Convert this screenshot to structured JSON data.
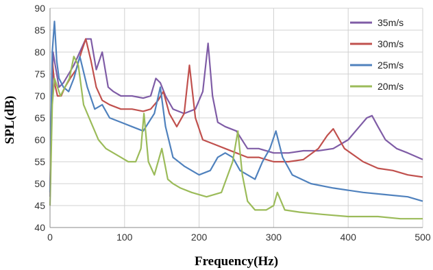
{
  "chart_data": {
    "type": "line",
    "title": "",
    "xlabel": "Frequency(Hz)",
    "ylabel": "SPL(dB)",
    "xlim": [
      0,
      500
    ],
    "ylim": [
      40,
      90
    ],
    "xticks": [
      0,
      100,
      200,
      300,
      400,
      500
    ],
    "yticks": [
      40,
      45,
      50,
      55,
      60,
      65,
      70,
      75,
      80,
      85,
      90
    ],
    "grid": true,
    "legend_position": "top-right",
    "series": [
      {
        "name": "35m/s",
        "color": "#7f5ca6",
        "x": [
          0,
          4,
          8,
          12,
          18,
          25,
          32,
          40,
          48,
          55,
          62,
          70,
          78,
          85,
          95,
          110,
          125,
          135,
          142,
          148,
          155,
          165,
          180,
          195,
          205,
          212,
          218,
          225,
          235,
          250,
          265,
          280,
          300,
          320,
          340,
          360,
          380,
          400,
          415,
          425,
          432,
          440,
          450,
          465,
          480,
          500
        ],
        "y": [
          47,
          80,
          76,
          72,
          73,
          75,
          77,
          80,
          83,
          83,
          76,
          80,
          72,
          71,
          70,
          70,
          69.5,
          70,
          74,
          73,
          70,
          67,
          66,
          67,
          71,
          82,
          70,
          64,
          63,
          62,
          58,
          58,
          57,
          57,
          57.5,
          57.5,
          58,
          60,
          63,
          65,
          65.5,
          63,
          60,
          58,
          57,
          55.5
        ]
      },
      {
        "name": "30m/s",
        "color": "#c0504d",
        "x": [
          0,
          3,
          6,
          10,
          15,
          20,
          27,
          35,
          42,
          48,
          55,
          62,
          70,
          80,
          95,
          110,
          125,
          135,
          145,
          152,
          160,
          170,
          180,
          187,
          195,
          205,
          220,
          235,
          250,
          265,
          280,
          300,
          320,
          340,
          360,
          372,
          380,
          395,
          420,
          440,
          460,
          480,
          500
        ],
        "y": [
          48,
          78,
          73,
          70,
          70,
          72,
          74,
          76,
          80,
          83,
          78,
          72,
          69,
          68,
          67,
          67,
          66.5,
          67,
          69,
          71,
          66,
          63,
          66,
          77,
          65,
          60,
          59,
          58,
          57,
          56,
          56,
          55,
          55,
          55.5,
          58,
          61,
          62.5,
          58,
          55,
          53.5,
          53,
          52,
          51.5
        ]
      },
      {
        "name": "25m/s",
        "color": "#4f81bd",
        "x": [
          0,
          3,
          6,
          9,
          12,
          18,
          25,
          32,
          40,
          50,
          60,
          70,
          80,
          95,
          110,
          125,
          140,
          148,
          155,
          165,
          180,
          200,
          215,
          225,
          235,
          245,
          255,
          265,
          275,
          285,
          295,
          303,
          312,
          325,
          350,
          380,
          420,
          450,
          480,
          500
        ],
        "y": [
          48,
          80,
          87,
          78,
          74,
          72,
          71,
          74,
          79,
          72,
          67,
          68,
          65,
          64,
          63,
          62,
          66,
          72,
          63,
          56,
          54,
          52,
          53,
          56,
          57,
          56,
          53,
          52,
          51,
          55,
          58,
          62,
          56,
          52,
          50,
          49,
          48,
          47.5,
          47,
          46
        ]
      },
      {
        "name": "20m/s",
        "color": "#9bbb59",
        "x": [
          0,
          3,
          6,
          10,
          14,
          20,
          26,
          32,
          38,
          45,
          55,
          65,
          75,
          85,
          95,
          105,
          115,
          122,
          126,
          132,
          140,
          150,
          158,
          165,
          175,
          190,
          210,
          230,
          245,
          252,
          258,
          265,
          275,
          290,
          300,
          305,
          315,
          335,
          365,
          400,
          440,
          470,
          500
        ],
        "y": [
          45,
          68,
          74,
          72,
          70,
          72,
          74,
          79,
          77,
          68,
          64,
          60,
          58,
          57,
          56,
          55,
          55,
          58,
          66,
          55,
          52,
          58,
          51,
          50,
          49,
          48,
          47,
          48,
          55,
          62,
          52,
          46,
          44,
          44,
          45,
          48,
          44,
          43.5,
          43,
          42.5,
          42.5,
          42,
          42
        ]
      }
    ]
  }
}
